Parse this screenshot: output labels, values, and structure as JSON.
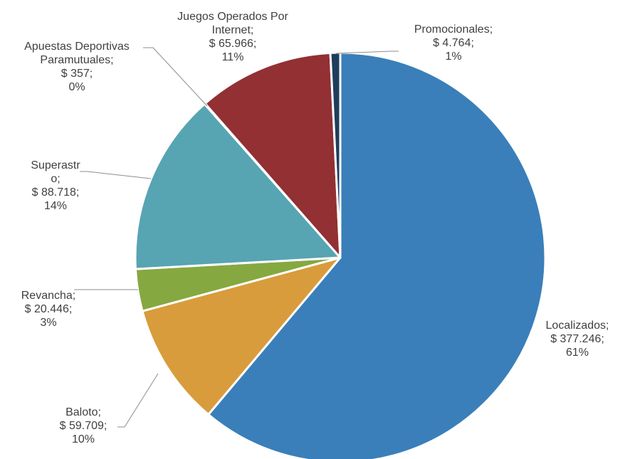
{
  "chart_data": {
    "type": "pie",
    "title": "",
    "slices": [
      {
        "name": "Localizados",
        "value": 377246,
        "value_label": "$ 377.246",
        "percent_label": "61%",
        "color": "#3a7fb9",
        "label_lines": [
          "Localizados;",
          "$ 377.246;",
          "61%"
        ]
      },
      {
        "name": "Baloto",
        "value": 59709,
        "value_label": "$ 59.709",
        "percent_label": "10%",
        "color": "#d89c3c",
        "label_lines": [
          "Baloto;",
          "$ 59.709;",
          "10%"
        ]
      },
      {
        "name": "Revancha",
        "value": 20446,
        "value_label": "$ 20.446",
        "percent_label": "3%",
        "color": "#86a840",
        "label_lines": [
          "Revancha;",
          "$ 20.446;",
          "3%"
        ]
      },
      {
        "name": "Superastro",
        "value": 88718,
        "value_label": "$ 88.718",
        "percent_label": "14%",
        "color": "#57a4b3",
        "label_lines": [
          "Superastr",
          "o;",
          "$ 88.718;",
          "14%"
        ]
      },
      {
        "name": "Apuestas Deportivas Paramutuales",
        "value": 357,
        "value_label": "$ 357",
        "percent_label": "0%",
        "color": "#7a7a7a",
        "label_lines": [
          "Apuestas Deportivas",
          "Paramutuales;",
          "$ 357;",
          "0%"
        ]
      },
      {
        "name": "Juegos Operados Por Internet",
        "value": 65966,
        "value_label": "$ 65.966",
        "percent_label": "11%",
        "color": "#923033",
        "label_lines": [
          "Juegos Operados Por",
          "Internet;",
          "$ 65.966;",
          "11%"
        ]
      },
      {
        "name": "Promocionales",
        "value": 4764,
        "value_label": "$ 4.764",
        "percent_label": "1%",
        "color": "#1f3d5c",
        "label_lines": [
          "Promocionales;",
          "$ 4.764;",
          "1%"
        ]
      }
    ],
    "start": "12 o'clock",
    "direction": "clockwise",
    "label_color": "#404040",
    "leader_color": "#8c8c8c",
    "border_color": "#ffffff"
  }
}
